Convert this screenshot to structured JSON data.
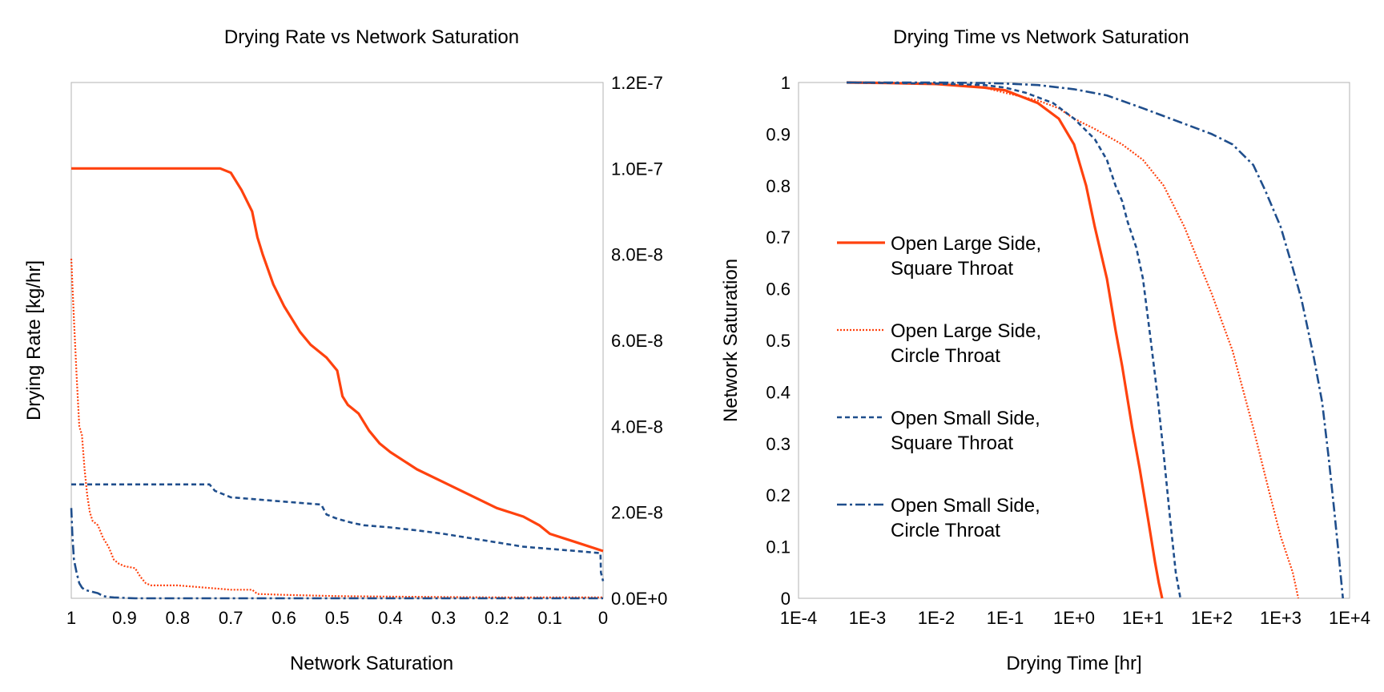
{
  "chart_data": [
    {
      "type": "line",
      "title": "Drying Rate vs Network Saturation",
      "xlabel": "Network Saturation",
      "ylabel": "Drying Rate [kg/hr]",
      "xlim": [
        1,
        0
      ],
      "ylim": [
        0,
        1.2e-07
      ],
      "x_ticks": [
        "1",
        "0.9",
        "0.8",
        "0.7",
        "0.6",
        "0.5",
        "0.4",
        "0.3",
        "0.2",
        "0.1",
        "0"
      ],
      "y_ticks": [
        "0.0E+0",
        "2.0E-8",
        "4.0E-8",
        "6.0E-8",
        "8.0E-8",
        "1.0E-7",
        "1.2E-7"
      ],
      "y_axis_side": "right",
      "grid": false,
      "series": [
        {
          "name": "Open Large Side, Square Throat",
          "color": "#ff420e",
          "style": "solid",
          "x": [
            1.0,
            0.9,
            0.8,
            0.74,
            0.72,
            0.7,
            0.68,
            0.66,
            0.65,
            0.64,
            0.62,
            0.6,
            0.57,
            0.55,
            0.52,
            0.5,
            0.49,
            0.48,
            0.46,
            0.44,
            0.42,
            0.4,
            0.35,
            0.3,
            0.25,
            0.2,
            0.15,
            0.12,
            0.1,
            0.05,
            0.0
          ],
          "y": [
            1e-07,
            1e-07,
            1e-07,
            1e-07,
            1e-07,
            9.9e-08,
            9.5e-08,
            9e-08,
            8.4e-08,
            8e-08,
            7.3e-08,
            6.8e-08,
            6.2e-08,
            5.9e-08,
            5.6e-08,
            5.3e-08,
            4.7e-08,
            4.5e-08,
            4.3e-08,
            3.9e-08,
            3.6e-08,
            3.4e-08,
            3e-08,
            2.7e-08,
            2.4e-08,
            2.1e-08,
            1.9e-08,
            1.7e-08,
            1.5e-08,
            1.3e-08,
            1.1e-08
          ]
        },
        {
          "name": "Open Large Side, Circle Throat",
          "color": "#ff420e",
          "style": "dotted",
          "x": [
            1.0,
            0.995,
            0.99,
            0.985,
            0.98,
            0.975,
            0.97,
            0.965,
            0.96,
            0.95,
            0.94,
            0.93,
            0.92,
            0.91,
            0.9,
            0.88,
            0.87,
            0.86,
            0.85,
            0.8,
            0.75,
            0.7,
            0.66,
            0.65,
            0.6,
            0.5,
            0.4,
            0.3,
            0.2,
            0.1,
            0.0
          ],
          "y": [
            7.9e-08,
            6.5e-08,
            5.2e-08,
            4e-08,
            3.8e-08,
            3e-08,
            2.4e-08,
            2e-08,
            1.8e-08,
            1.7e-08,
            1.4e-08,
            1.2e-08,
            9e-09,
            8e-09,
            7.5e-09,
            7e-09,
            5e-09,
            3.5e-09,
            3e-09,
            3e-09,
            2.5e-09,
            2e-09,
            2e-09,
            1e-09,
            8e-10,
            5e-10,
            4e-10,
            3e-10,
            2e-10,
            2e-10,
            2e-10
          ]
        },
        {
          "name": "Open Small Side, Square Throat",
          "color": "#1f4e8c",
          "style": "dashed",
          "x": [
            1.0,
            0.9,
            0.8,
            0.74,
            0.73,
            0.71,
            0.7,
            0.65,
            0.6,
            0.55,
            0.53,
            0.52,
            0.5,
            0.47,
            0.45,
            0.4,
            0.35,
            0.3,
            0.25,
            0.2,
            0.15,
            0.1,
            0.05,
            0.005,
            0.004,
            0.0
          ],
          "y": [
            2.65e-08,
            2.65e-08,
            2.65e-08,
            2.65e-08,
            2.5e-08,
            2.4e-08,
            2.35e-08,
            2.3e-08,
            2.25e-08,
            2.2e-08,
            2.18e-08,
            1.95e-08,
            1.85e-08,
            1.75e-08,
            1.7e-08,
            1.65e-08,
            1.58e-08,
            1.5e-08,
            1.4e-08,
            1.3e-08,
            1.2e-08,
            1.15e-08,
            1.1e-08,
            1.05e-08,
            6e-09,
            4e-09
          ]
        },
        {
          "name": "Open Small Side, Circle Throat",
          "color": "#1f4e8c",
          "style": "dashdot",
          "x": [
            1.0,
            0.998,
            0.995,
            0.99,
            0.985,
            0.98,
            0.975,
            0.97,
            0.96,
            0.95,
            0.94,
            0.93,
            0.92,
            0.9,
            0.88,
            0.85,
            0.8,
            0.7,
            0.6,
            0.5,
            0.4,
            0.3,
            0.2,
            0.1,
            0.0
          ],
          "y": [
            2.1e-08,
            1.5e-08,
            9e-09,
            6e-09,
            3.5e-09,
            2.5e-09,
            2e-09,
            1.8e-09,
            1.5e-09,
            1.2e-09,
            5e-10,
            3e-10,
            2e-10,
            1e-10,
            0.0,
            0.0,
            0.0,
            0.0,
            0.0,
            0.0,
            0.0,
            0.0,
            0.0,
            0.0,
            0.0
          ]
        }
      ]
    },
    {
      "type": "line",
      "title": "Drying Time vs Network Saturation",
      "xlabel": "Drying Time [hr]",
      "ylabel": "Network Saturation",
      "xscale": "log",
      "xlim": [
        0.0001,
        10000.0
      ],
      "ylim": [
        0,
        1
      ],
      "x_ticks": [
        "1E-4",
        "1E-3",
        "1E-2",
        "1E-1",
        "1E+0",
        "1E+1",
        "1E+2",
        "1E+3",
        "1E+4"
      ],
      "y_ticks": [
        "0",
        "0.1",
        "0.2",
        "0.3",
        "0.4",
        "0.5",
        "0.6",
        "0.7",
        "0.8",
        "0.9",
        "1"
      ],
      "grid": false,
      "legend": {
        "placement": "left-center"
      },
      "series": [
        {
          "name": "Open Large Side, Square Throat",
          "legend_lines": [
            "Open Large Side,",
            "Square Throat"
          ],
          "color": "#ff420e",
          "style": "solid",
          "x": [
            0.0005,
            0.002,
            0.01,
            0.05,
            0.1,
            0.3,
            0.6,
            1.0,
            1.5,
            2.0,
            3.0,
            4.0,
            5.0,
            7.0,
            9.0,
            12.0,
            15.0,
            17.0,
            19.0
          ],
          "y": [
            1.0,
            0.999,
            0.997,
            0.99,
            0.985,
            0.96,
            0.93,
            0.88,
            0.8,
            0.72,
            0.62,
            0.52,
            0.45,
            0.33,
            0.25,
            0.15,
            0.07,
            0.03,
            0.0
          ]
        },
        {
          "name": "Open Large Side, Circle Throat",
          "legend_lines": [
            "Open Large Side,",
            "Circle Throat"
          ],
          "color": "#ff420e",
          "style": "dotted",
          "x": [
            0.0005,
            0.002,
            0.01,
            0.05,
            0.1,
            0.3,
            0.6,
            1.0,
            2.0,
            5.0,
            10.0,
            20.0,
            40.0,
            70.0,
            100.0,
            200.0,
            400.0,
            700.0,
            1000.0,
            1500.0,
            1800.0
          ],
          "y": [
            1.0,
            0.999,
            0.997,
            0.99,
            0.98,
            0.965,
            0.95,
            0.93,
            0.91,
            0.88,
            0.85,
            0.8,
            0.72,
            0.64,
            0.59,
            0.48,
            0.33,
            0.2,
            0.12,
            0.05,
            0.0
          ]
        },
        {
          "name": "Open Small Side, Square Throat",
          "legend_lines": [
            "Open Small Side,",
            "Square Throat"
          ],
          "color": "#1f4e8c",
          "style": "dashed",
          "x": [
            0.0005,
            0.002,
            0.01,
            0.05,
            0.1,
            0.2,
            0.5,
            1.0,
            2.0,
            3.0,
            4.0,
            5.0,
            6.0,
            8.0,
            10.0,
            13.0,
            16.0,
            20.0,
            25.0,
            30.0,
            35.0
          ],
          "y": [
            1.0,
            0.999,
            0.998,
            0.995,
            0.99,
            0.98,
            0.96,
            0.93,
            0.89,
            0.85,
            0.8,
            0.77,
            0.73,
            0.68,
            0.62,
            0.5,
            0.4,
            0.28,
            0.15,
            0.05,
            0.0
          ]
        },
        {
          "name": "Open Small Side, Circle Throat",
          "legend_lines": [
            "Open Small Side,",
            "Circle Throat"
          ],
          "color": "#1f4e8c",
          "style": "dashdot",
          "x": [
            0.0005,
            0.002,
            0.01,
            0.05,
            0.1,
            0.3,
            1.0,
            3.0,
            10.0,
            20.0,
            50.0,
            100.0,
            200.0,
            400.0,
            600.0,
            1000.0,
            1500.0,
            2000.0,
            3000.0,
            4000.0,
            5000.0,
            6000.0,
            7000.0,
            8000.0
          ],
          "y": [
            1.0,
            1.0,
            1.0,
            0.999,
            0.998,
            0.995,
            0.987,
            0.975,
            0.95,
            0.935,
            0.915,
            0.9,
            0.88,
            0.84,
            0.79,
            0.72,
            0.64,
            0.58,
            0.47,
            0.38,
            0.27,
            0.17,
            0.08,
            0.0
          ]
        }
      ]
    }
  ]
}
